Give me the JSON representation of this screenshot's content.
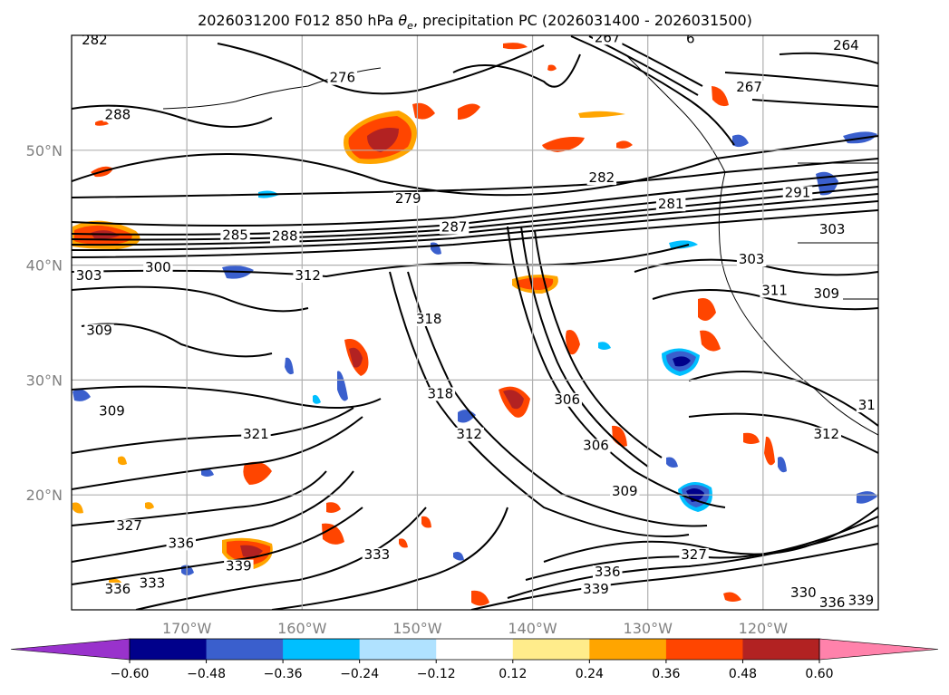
{
  "chart_data": {
    "type": "contour-map",
    "title": "2026031200 F012 850 hPa θe, precipitation PC (2026031400 - 2026031500)",
    "title_parts": {
      "prefix": "2026031200 F012 850 hPa ",
      "theta": "θ",
      "sub": "e",
      "suffix": ", precipitation PC (2026031400 - 2026031500)"
    },
    "lon_range": [
      -180,
      -110
    ],
    "lat_range": [
      10,
      60
    ],
    "lon_ticks": [
      {
        "value": -170,
        "label": "170°W"
      },
      {
        "value": -160,
        "label": "160°W"
      },
      {
        "value": -150,
        "label": "150°W"
      },
      {
        "value": -140,
        "label": "140°W"
      },
      {
        "value": -130,
        "label": "130°W"
      },
      {
        "value": -120,
        "label": "120°W"
      }
    ],
    "lat_ticks": [
      {
        "value": 20,
        "label": "20°N"
      },
      {
        "value": 30,
        "label": "30°N"
      },
      {
        "value": 40,
        "label": "40°N"
      },
      {
        "value": 50,
        "label": "50°N"
      }
    ],
    "contour_labels": [
      {
        "text": "282",
        "lon": -178.0,
        "lat": 59.3
      },
      {
        "text": "276",
        "lon": -156.5,
        "lat": 56.0
      },
      {
        "text": "288",
        "lon": -176.0,
        "lat": 52.8
      },
      {
        "text": "279",
        "lon": -150.8,
        "lat": 45.5
      },
      {
        "text": "282",
        "lon": -134.0,
        "lat": 47.3
      },
      {
        "text": "281",
        "lon": -128.0,
        "lat": 45.0
      },
      {
        "text": "287",
        "lon": -146.8,
        "lat": 43.0
      },
      {
        "text": "285",
        "lon": -165.8,
        "lat": 42.3
      },
      {
        "text": "288",
        "lon": -161.5,
        "lat": 42.2
      },
      {
        "text": "300",
        "lon": -172.5,
        "lat": 39.5
      },
      {
        "text": "303",
        "lon": -178.5,
        "lat": 38.8
      },
      {
        "text": "312",
        "lon": -159.5,
        "lat": 38.8
      },
      {
        "text": "309",
        "lon": -177.6,
        "lat": 34.0
      },
      {
        "text": "318",
        "lon": -149.0,
        "lat": 35.0
      },
      {
        "text": "318",
        "lon": -148.0,
        "lat": 28.5
      },
      {
        "text": "309",
        "lon": -176.5,
        "lat": 27.0
      },
      {
        "text": "321",
        "lon": -164.0,
        "lat": 25.0
      },
      {
        "text": "312",
        "lon": -145.5,
        "lat": 25.0
      },
      {
        "text": "306",
        "lon": -137.0,
        "lat": 28.0
      },
      {
        "text": "306",
        "lon": -134.5,
        "lat": 24.0
      },
      {
        "text": "309",
        "lon": -132.0,
        "lat": 20.0
      },
      {
        "text": "312",
        "lon": -114.5,
        "lat": 25.0
      },
      {
        "text": "327",
        "lon": -175.0,
        "lat": 17.0
      },
      {
        "text": "336",
        "lon": -170.5,
        "lat": 15.5
      },
      {
        "text": "339",
        "lon": -165.5,
        "lat": 13.5
      },
      {
        "text": "333",
        "lon": -173.0,
        "lat": 12.0
      },
      {
        "text": "336",
        "lon": -176.0,
        "lat": 11.5
      },
      {
        "text": "333",
        "lon": -153.5,
        "lat": 14.5
      },
      {
        "text": "336",
        "lon": -133.5,
        "lat": 13.0
      },
      {
        "text": "339",
        "lon": -134.5,
        "lat": 11.5
      },
      {
        "text": "327",
        "lon": -126.0,
        "lat": 14.5
      },
      {
        "text": "330",
        "lon": -116.5,
        "lat": 11.2
      },
      {
        "text": "336",
        "lon": -114.0,
        "lat": 10.3
      },
      {
        "text": "339",
        "lon": -111.5,
        "lat": 10.5
      },
      {
        "text": "264",
        "lon": -112.8,
        "lat": 58.8
      },
      {
        "text": "267",
        "lon": -121.2,
        "lat": 55.2
      },
      {
        "text": "267",
        "lon": -133.5,
        "lat": 59.5
      },
      {
        "text": "6",
        "lon": -126.3,
        "lat": 59.4
      },
      {
        "text": "291",
        "lon": -117.0,
        "lat": 46.0
      },
      {
        "text": "303",
        "lon": -114.0,
        "lat": 42.8
      },
      {
        "text": "303",
        "lon": -121.0,
        "lat": 40.2
      },
      {
        "text": "311",
        "lon": -119.0,
        "lat": 37.5
      },
      {
        "text": "309",
        "lon": -114.5,
        "lat": 37.2
      },
      {
        "text": "31",
        "lon": -111.0,
        "lat": 27.5
      }
    ],
    "colorbar": {
      "ticks": [
        "−0.60",
        "−0.48",
        "−0.36",
        "−0.24",
        "−0.12",
        "0.12",
        "0.24",
        "0.36",
        "0.48",
        "0.60"
      ],
      "bounds": [
        -0.6,
        -0.48,
        -0.36,
        -0.24,
        -0.12,
        0.12,
        0.24,
        0.36,
        0.48,
        0.6
      ],
      "colors": [
        "#9932CC",
        "#00008B",
        "#3A5FCD",
        "#00BFFF",
        "#B0E2FF",
        "#FFFFFF",
        "#FFEC8B",
        "#FFA500",
        "#FF4500",
        "#B22222",
        "#FF82AB"
      ],
      "extend": "both"
    },
    "shading_colors": {
      "neg_light": "#B0E2FF",
      "neg_mid": "#00BFFF",
      "neg_strong": "#3A5FCD",
      "neg_extreme": "#00008B",
      "pos_light": "#FFEC8B",
      "pos_mid": "#FFA500",
      "pos_strong": "#FF4500",
      "pos_extreme": "#B22222",
      "pos_max": "#FF82AB"
    }
  }
}
